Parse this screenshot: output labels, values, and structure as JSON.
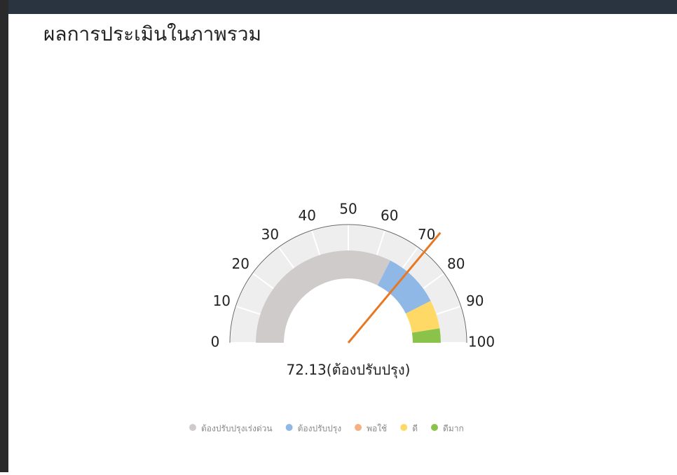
{
  "chart_data": {
    "type": "gauge",
    "title": "ผลการประเมินในภาพรวม",
    "ylim": [
      0,
      100
    ],
    "yticks": [
      0,
      10,
      20,
      30,
      40,
      50,
      60,
      70,
      80,
      90,
      100
    ],
    "value": 72.13,
    "value_label": "72.13(ต้องปรับปรุง)",
    "needle_color": "#e87722",
    "track_color": "#eeeeee",
    "series": [
      {
        "name": "ต้องปรับปรุงเร่งด่วน",
        "color": "#cfcbcb",
        "values": [
          0,
          65
        ]
      },
      {
        "name": "ต้องปรับปรุง",
        "color": "#8fb8e6",
        "values": [
          65,
          85
        ]
      },
      {
        "name": "พอใช้",
        "color": "#f4b183",
        "values": [
          85,
          85
        ]
      },
      {
        "name": "ดี",
        "color": "#ffd966",
        "values": [
          85,
          95
        ]
      },
      {
        "name": "ดีมาก",
        "color": "#8bc34a",
        "values": [
          95,
          100
        ]
      }
    ]
  }
}
